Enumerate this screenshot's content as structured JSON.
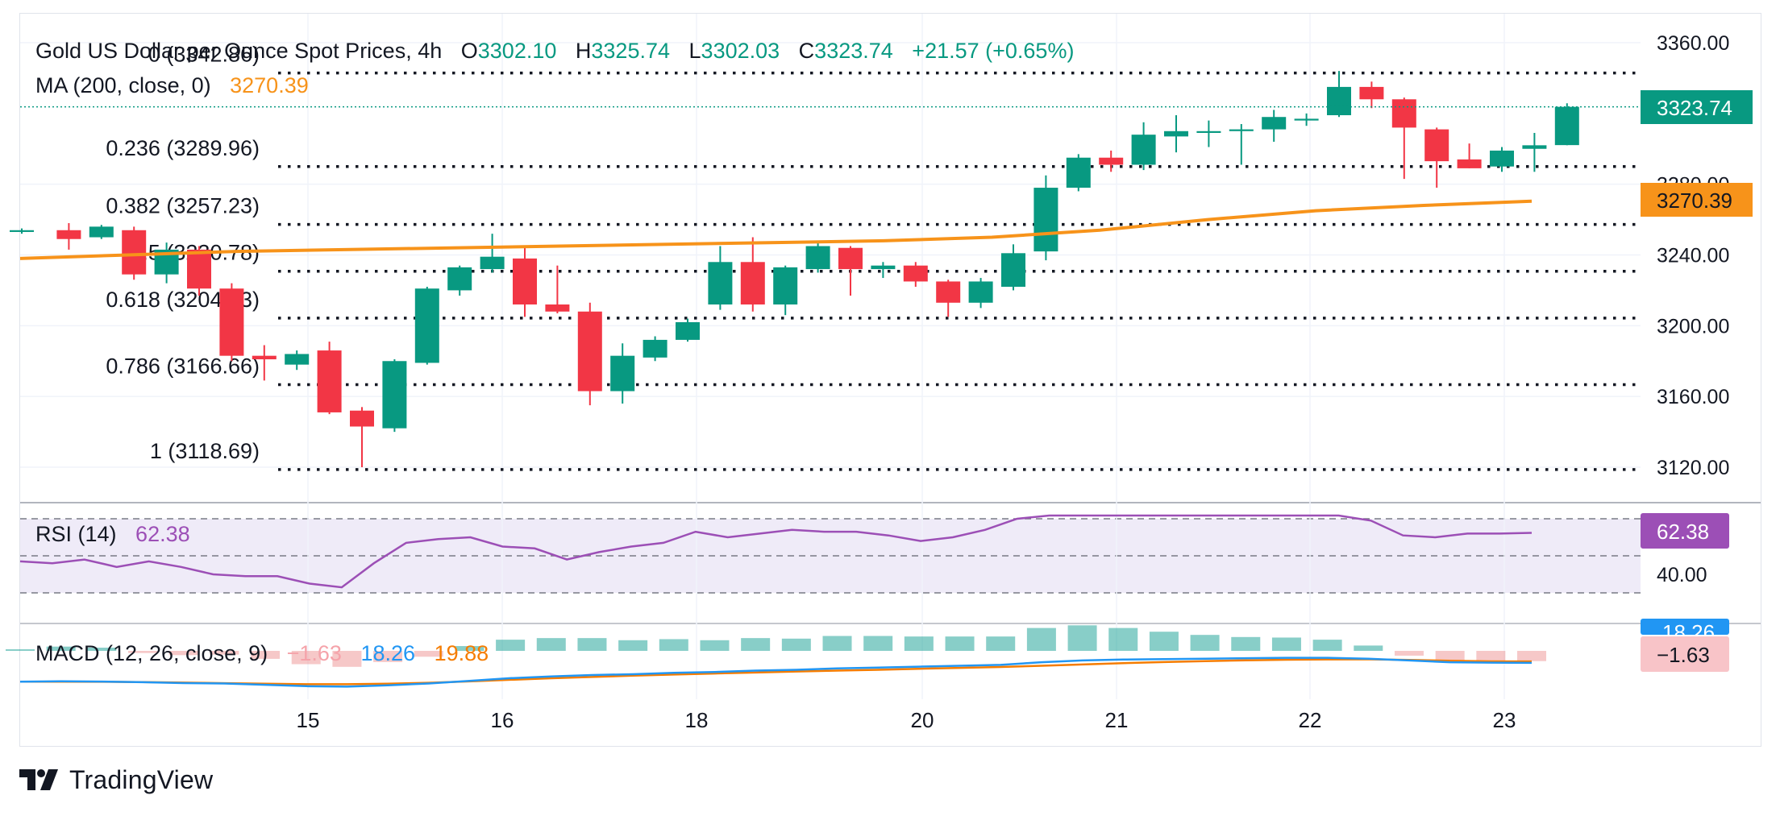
{
  "header": {
    "title": "Gold US Dollar per Ounce Spot Prices, 4h",
    "o_label": "O",
    "o_value": "3302.10",
    "h_label": "H",
    "h_value": "3325.74",
    "l_label": "L",
    "l_value": "3302.03",
    "c_label": "C",
    "c_value": "3323.74",
    "change": "+21.57 (+0.65%)",
    "ma_label": "MA (200, close, 0)",
    "ma_value": "3270.39"
  },
  "fib_levels": [
    {
      "label": "0 (3342.86)",
      "value": 3342.86
    },
    {
      "label": "0.236 (3289.96)",
      "value": 3289.96
    },
    {
      "label": "0.382 (3257.23)",
      "value": 3257.23
    },
    {
      "label": "0.5 (3230.78)",
      "value": 3230.78
    },
    {
      "label": "0.618 (3204.33)",
      "value": 3204.33
    },
    {
      "label": "0.786 (3166.66)",
      "value": 3166.66
    },
    {
      "label": "1 (3118.69)",
      "value": 3118.69
    }
  ],
  "price_axis": {
    "ticks": [
      "3360.00",
      "3280.00",
      "3240.00",
      "3200.00",
      "3160.00",
      "3120.00"
    ],
    "last_price_label": "3323.74",
    "ma_label": "3270.39"
  },
  "time_axis": {
    "ticks": [
      "15",
      "16",
      "18",
      "20",
      "21",
      "22",
      "23"
    ]
  },
  "rsi": {
    "label": "RSI (14)",
    "value": "62.38",
    "tick": "40.00",
    "badge": "62.38"
  },
  "macd": {
    "label": "MACD (12, 26, close, 9)",
    "hist_value": "−1.63",
    "macd_value": "18.26",
    "signal_value": "19.88",
    "badge_macd": "18.26",
    "badge_hist": "−1.63"
  },
  "brand": {
    "name": "TradingView"
  },
  "colors": {
    "up": "#089981",
    "down": "#f23645",
    "ma": "#f7931a",
    "rsi": "#9c4fb6",
    "macd": "#2196f3",
    "signal": "#f57c00",
    "fib": "#131722"
  },
  "chart_data": {
    "type": "candlestick",
    "title": "Gold US Dollar per Ounce Spot Prices, 4h",
    "ylim": [
      3105,
      3372
    ],
    "x_ticks": [
      "15",
      "16",
      "18",
      "20",
      "21",
      "22",
      "23"
    ],
    "candles": [
      {
        "o": 3253,
        "h": 3255,
        "l": 3252,
        "c": 3254
      },
      {
        "o": 3254,
        "h": 3258,
        "l": 3243,
        "c": 3249
      },
      {
        "o": 3250,
        "h": 3257,
        "l": 3249,
        "c": 3256
      },
      {
        "o": 3254,
        "h": 3256,
        "l": 3226,
        "c": 3229
      },
      {
        "o": 3229,
        "h": 3247,
        "l": 3224,
        "c": 3243
      },
      {
        "o": 3243,
        "h": 3245,
        "l": 3217,
        "c": 3221
      },
      {
        "o": 3221,
        "h": 3224,
        "l": 3180,
        "c": 3183
      },
      {
        "o": 3183,
        "h": 3189,
        "l": 3169,
        "c": 3181
      },
      {
        "o": 3178,
        "h": 3186,
        "l": 3175,
        "c": 3184
      },
      {
        "o": 3186,
        "h": 3191,
        "l": 3150,
        "c": 3151
      },
      {
        "o": 3152,
        "h": 3154,
        "l": 3120,
        "c": 3143
      },
      {
        "o": 3142,
        "h": 3181,
        "l": 3140,
        "c": 3180
      },
      {
        "o": 3179,
        "h": 3222,
        "l": 3178,
        "c": 3221
      },
      {
        "o": 3220,
        "h": 3234,
        "l": 3217,
        "c": 3233
      },
      {
        "o": 3232,
        "h": 3252,
        "l": 3230,
        "c": 3239
      },
      {
        "o": 3238,
        "h": 3245,
        "l": 3205,
        "c": 3212
      },
      {
        "o": 3212,
        "h": 3234,
        "l": 3207,
        "c": 3208
      },
      {
        "o": 3208,
        "h": 3213,
        "l": 3155,
        "c": 3163
      },
      {
        "o": 3163,
        "h": 3190,
        "l": 3156,
        "c": 3183
      },
      {
        "o": 3182,
        "h": 3194,
        "l": 3180,
        "c": 3192
      },
      {
        "o": 3192,
        "h": 3204,
        "l": 3191,
        "c": 3202
      },
      {
        "o": 3212,
        "h": 3245,
        "l": 3209,
        "c": 3236
      },
      {
        "o": 3236,
        "h": 3250,
        "l": 3208,
        "c": 3212
      },
      {
        "o": 3212,
        "h": 3234,
        "l": 3206,
        "c": 3233
      },
      {
        "o": 3232,
        "h": 3247,
        "l": 3230,
        "c": 3245
      },
      {
        "o": 3244,
        "h": 3245,
        "l": 3217,
        "c": 3232
      },
      {
        "o": 3232,
        "h": 3236,
        "l": 3227,
        "c": 3234
      },
      {
        "o": 3234,
        "h": 3236,
        "l": 3222,
        "c": 3225
      },
      {
        "o": 3225,
        "h": 3226,
        "l": 3205,
        "c": 3213
      },
      {
        "o": 3213,
        "h": 3227,
        "l": 3210,
        "c": 3225
      },
      {
        "o": 3222,
        "h": 3246,
        "l": 3220,
        "c": 3241
      },
      {
        "o": 3242,
        "h": 3285,
        "l": 3237,
        "c": 3278
      },
      {
        "o": 3278,
        "h": 3297,
        "l": 3276,
        "c": 3295
      },
      {
        "o": 3295,
        "h": 3299,
        "l": 3287,
        "c": 3291
      },
      {
        "o": 3291,
        "h": 3315,
        "l": 3288,
        "c": 3308
      },
      {
        "o": 3307,
        "h": 3319,
        "l": 3298,
        "c": 3310
      },
      {
        "o": 3309,
        "h": 3316,
        "l": 3301,
        "c": 3310
      },
      {
        "o": 3310,
        "h": 3314,
        "l": 3291,
        "c": 3311
      },
      {
        "o": 3311,
        "h": 3322,
        "l": 3304,
        "c": 3318
      },
      {
        "o": 3316,
        "h": 3320,
        "l": 3313,
        "c": 3317
      },
      {
        "o": 3319,
        "h": 3344,
        "l": 3318,
        "c": 3335
      },
      {
        "o": 3335,
        "h": 3338,
        "l": 3323,
        "c": 3328
      },
      {
        "o": 3328,
        "h": 3329,
        "l": 3283,
        "c": 3312
      },
      {
        "o": 3311,
        "h": 3312,
        "l": 3278,
        "c": 3293
      },
      {
        "o": 3294,
        "h": 3303,
        "l": 3289,
        "c": 3289
      },
      {
        "o": 3290,
        "h": 3301,
        "l": 3287,
        "c": 3299
      },
      {
        "o": 3300,
        "h": 3309,
        "l": 3287,
        "c": 3302
      },
      {
        "o": 3302.1,
        "h": 3325.74,
        "l": 3302.03,
        "c": 3323.74
      }
    ],
    "ma200": [
      3238,
      3240,
      3242,
      3243,
      3244,
      3245,
      3246,
      3247,
      3248,
      3250,
      3254,
      3260,
      3265,
      3268,
      3270.39
    ],
    "rsi": {
      "ylim": [
        15,
        75
      ],
      "values": [
        47,
        46,
        48,
        44,
        47,
        44,
        40,
        39,
        39,
        35,
        33,
        46,
        57,
        59,
        60,
        55,
        54,
        48,
        52,
        55,
        57,
        63,
        60,
        62,
        64,
        63,
        63,
        61,
        58,
        60,
        64,
        70,
        72,
        72,
        73,
        73,
        73,
        74,
        75,
        76,
        75,
        73,
        69,
        61,
        60,
        62,
        62,
        62.38
      ]
    },
    "macd": {
      "macd_values": [
        -3,
        -2.5,
        -2.8,
        -3.5,
        -4.5,
        -5,
        -6.5,
        -8,
        -8.5,
        -7,
        -5,
        -2,
        1,
        3,
        4.5,
        5.5,
        7,
        8,
        9.5,
        10.5,
        12,
        13,
        14,
        15,
        16,
        19,
        21,
        22,
        22.5,
        23,
        23.5,
        24,
        24,
        23,
        21,
        19,
        18.5,
        18.26
      ],
      "signal_values": [
        -3,
        -3,
        -3.1,
        -3.4,
        -4,
        -4.6,
        -5.3,
        -5.8,
        -5.8,
        -5.2,
        -4.2,
        -2.6,
        -0.8,
        0.9,
        2.4,
        3.8,
        5.1,
        6.3,
        7.4,
        8.5,
        9.5,
        10.5,
        11.6,
        12.6,
        13.6,
        15,
        16.5,
        18,
        19.2,
        20.3,
        21.2,
        21.8,
        22.2,
        22.3,
        21.6,
        20.6,
        20,
        19.88
      ],
      "hist_value": -1.63
    }
  }
}
